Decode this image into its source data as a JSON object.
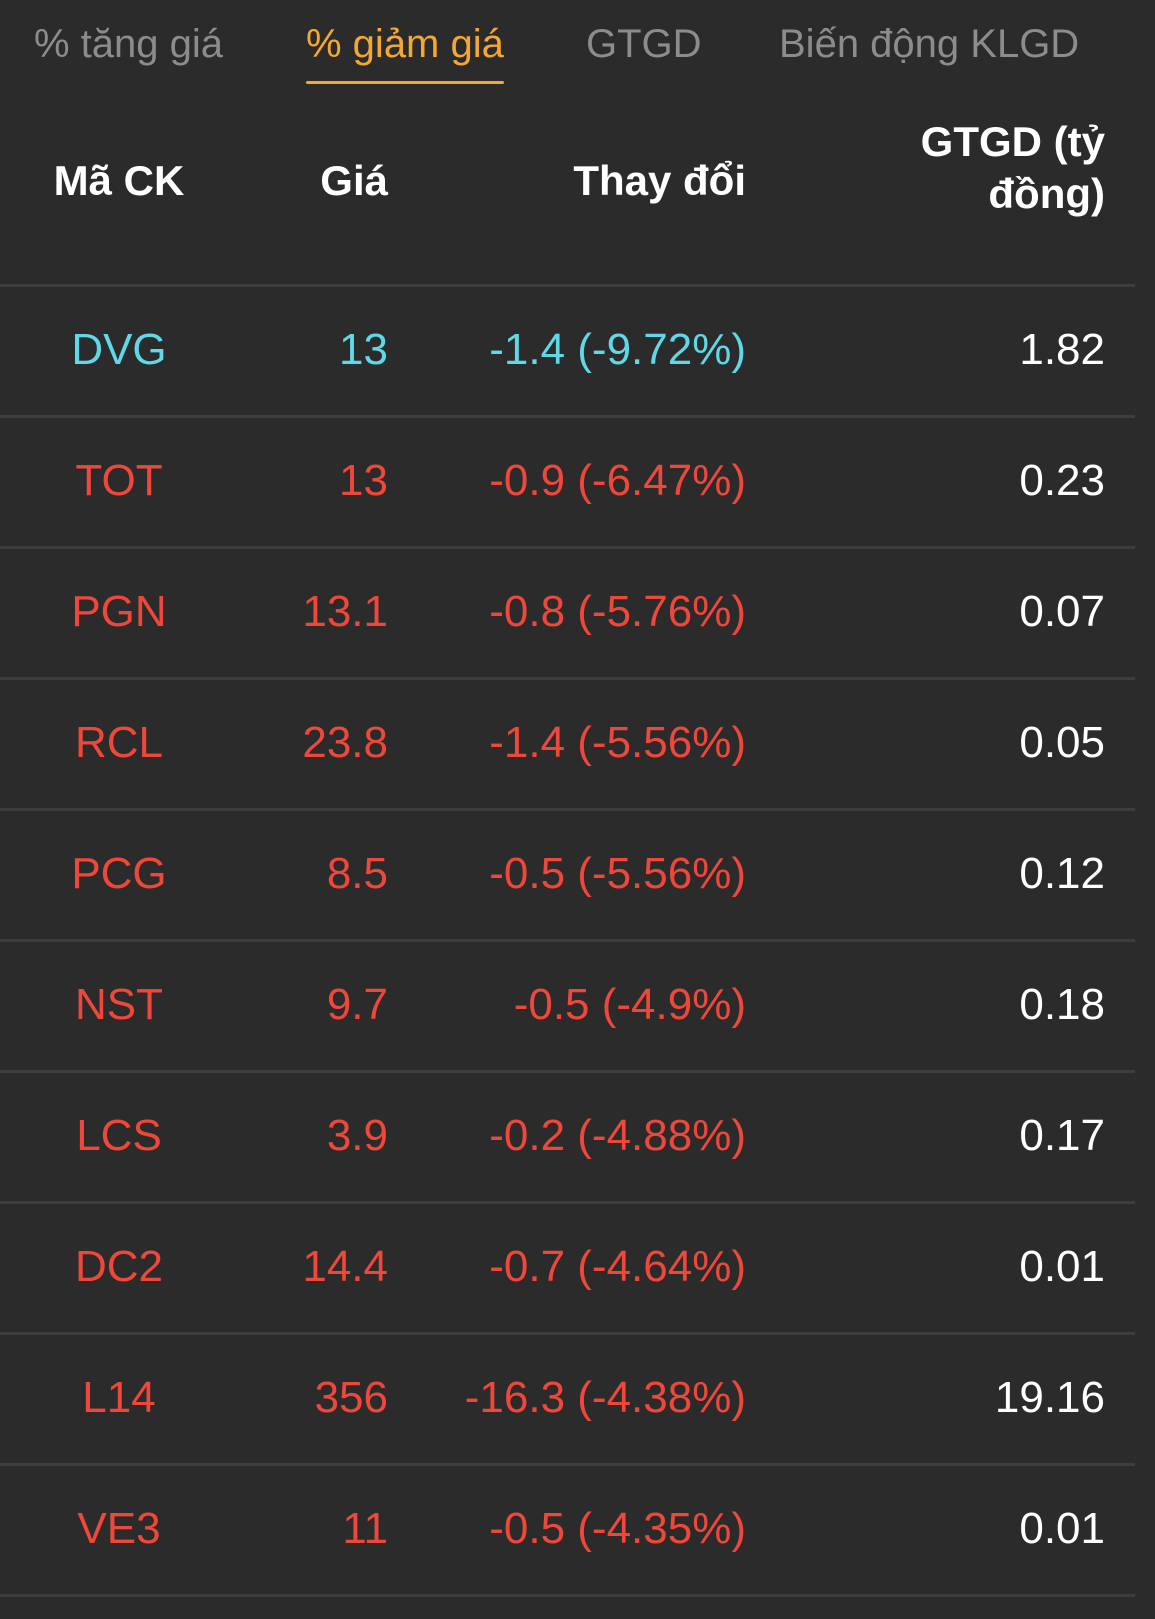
{
  "tabs": [
    {
      "label": "% tăng giá",
      "active": false
    },
    {
      "label": "% giảm giá",
      "active": true
    },
    {
      "label": "GTGD",
      "active": false
    },
    {
      "label": "Biến động KLGD",
      "active": false
    }
  ],
  "table": {
    "headers": {
      "code": "Mã CK",
      "price": "Giá",
      "change": "Thay đổi",
      "value_line1": "GTGD (tỷ",
      "value_line2": "đồng)"
    },
    "rows": [
      {
        "code": "DVG",
        "price": "13",
        "change": "-1.4 (-9.72%)",
        "value": "1.82",
        "status": "floor"
      },
      {
        "code": "TOT",
        "price": "13",
        "change": "-0.9 (-6.47%)",
        "value": "0.23",
        "status": "down"
      },
      {
        "code": "PGN",
        "price": "13.1",
        "change": "-0.8 (-5.76%)",
        "value": "0.07",
        "status": "down"
      },
      {
        "code": "RCL",
        "price": "23.8",
        "change": "-1.4 (-5.56%)",
        "value": "0.05",
        "status": "down"
      },
      {
        "code": "PCG",
        "price": "8.5",
        "change": "-0.5 (-5.56%)",
        "value": "0.12",
        "status": "down"
      },
      {
        "code": "NST",
        "price": "9.7",
        "change": "-0.5 (-4.9%)",
        "value": "0.18",
        "status": "down"
      },
      {
        "code": "LCS",
        "price": "3.9",
        "change": "-0.2 (-4.88%)",
        "value": "0.17",
        "status": "down"
      },
      {
        "code": "DC2",
        "price": "14.4",
        "change": "-0.7 (-4.64%)",
        "value": "0.01",
        "status": "down"
      },
      {
        "code": "L14",
        "price": "356",
        "change": "-16.3 (-4.38%)",
        "value": "19.16",
        "status": "down"
      },
      {
        "code": "VE3",
        "price": "11",
        "change": "-0.5 (-4.35%)",
        "value": "0.01",
        "status": "down"
      }
    ]
  },
  "colors": {
    "background": "#2b2b2b",
    "active_tab": "#f5a733",
    "inactive_tab": "#8c8c8c",
    "down": "#f0473b",
    "floor": "#5fd9e8",
    "divider": "#3d3d3d"
  }
}
